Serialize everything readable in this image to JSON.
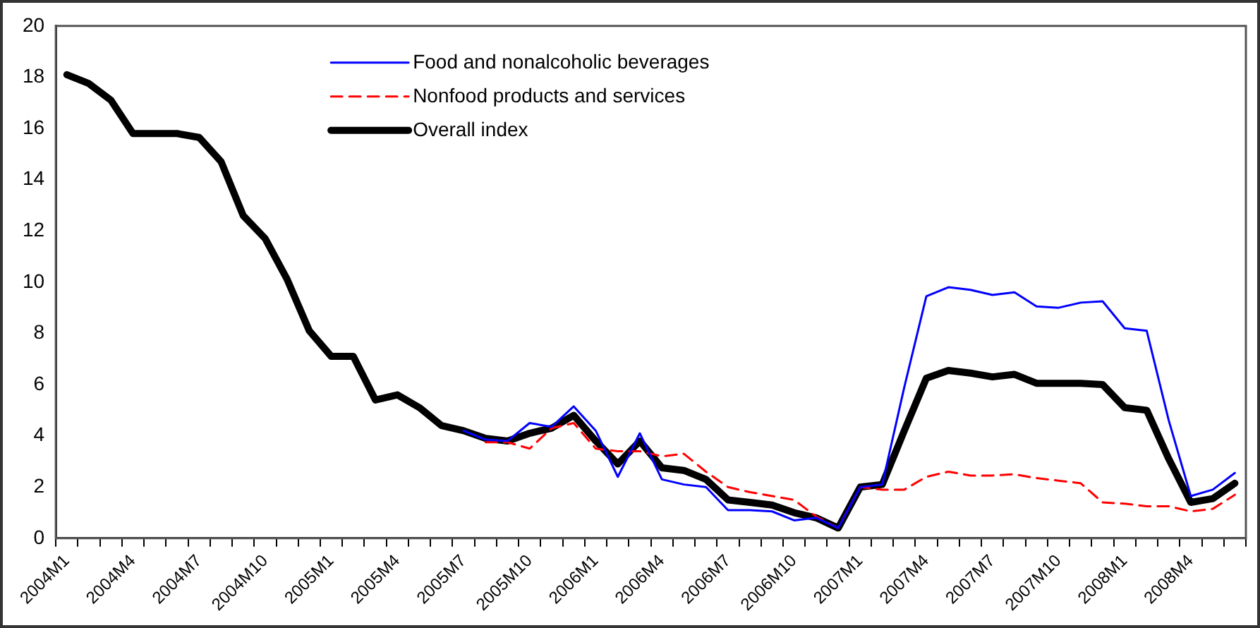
{
  "chart_data": {
    "type": "line",
    "categories": [
      "2004M1",
      null,
      null,
      "2004M4",
      null,
      null,
      "2004M7",
      null,
      null,
      "2004M10",
      null,
      null,
      "2005M1",
      null,
      null,
      "2005M4",
      null,
      null,
      "2005M7",
      null,
      null,
      "2005M10",
      null,
      null,
      "2006M1",
      null,
      null,
      "2006M4",
      null,
      null,
      "2006M7",
      null,
      null,
      "2006M10",
      null,
      null,
      "2007M1",
      null,
      null,
      "2007M4",
      null,
      null,
      "2007M7",
      null,
      null,
      "2007M10",
      null,
      null,
      "2008M1",
      null,
      null,
      "2008M4",
      null,
      null
    ],
    "series": [
      {
        "name": "Food and nonalcoholic beverages",
        "color": "#0000ff",
        "line_style": "solid",
        "values": [
          null,
          null,
          null,
          null,
          null,
          null,
          null,
          null,
          null,
          null,
          null,
          null,
          null,
          null,
          null,
          null,
          null,
          null,
          4.2,
          3.85,
          3.8,
          4.5,
          4.35,
          5.15,
          4.2,
          2.4,
          4.1,
          2.3,
          2.1,
          2.0,
          1.1,
          1.1,
          1.05,
          0.7,
          0.8,
          0.4,
          2.0,
          2.1,
          5.9,
          9.45,
          9.8,
          9.7,
          9.5,
          9.6,
          9.05,
          9.0,
          9.2,
          9.25,
          8.2,
          8.1,
          4.6,
          1.65,
          1.9,
          2.55
        ]
      },
      {
        "name": "Nonfood products and services",
        "color": "#ff0000",
        "line_style": "dashed",
        "values": [
          null,
          null,
          null,
          null,
          null,
          null,
          null,
          null,
          null,
          null,
          null,
          null,
          null,
          null,
          null,
          null,
          null,
          null,
          null,
          3.75,
          3.75,
          3.5,
          4.3,
          4.5,
          3.5,
          3.4,
          3.4,
          3.2,
          3.3,
          2.6,
          2.0,
          1.8,
          1.65,
          1.5,
          0.85,
          0.4,
          2.0,
          1.9,
          1.9,
          2.4,
          2.6,
          2.45,
          2.45,
          2.5,
          2.35,
          2.25,
          2.15,
          1.4,
          1.35,
          1.25,
          1.25,
          1.05,
          1.15,
          1.7
        ]
      },
      {
        "name": "Overall index",
        "color": "#000000",
        "line_style": "solid",
        "values": [
          18.1,
          17.75,
          17.1,
          15.8,
          15.8,
          15.8,
          15.65,
          14.7,
          12.6,
          11.7,
          10.1,
          8.1,
          7.1,
          7.1,
          5.4,
          5.6,
          5.1,
          4.4,
          4.2,
          3.9,
          3.8,
          4.1,
          4.3,
          4.8,
          3.8,
          2.9,
          3.8,
          2.75,
          2.65,
          2.3,
          1.5,
          1.4,
          1.3,
          1.0,
          0.8,
          0.4,
          2.0,
          2.1,
          4.2,
          6.25,
          6.55,
          6.45,
          6.3,
          6.4,
          6.05,
          6.05,
          6.05,
          6.0,
          5.1,
          5.0,
          3.1,
          1.4,
          1.55,
          2.15
        ]
      }
    ],
    "ylim": [
      0,
      20
    ],
    "yticks": [
      0,
      2,
      4,
      6,
      8,
      10,
      12,
      14,
      16,
      18,
      20
    ],
    "grid": false,
    "legend": "top",
    "marker": "none"
  }
}
